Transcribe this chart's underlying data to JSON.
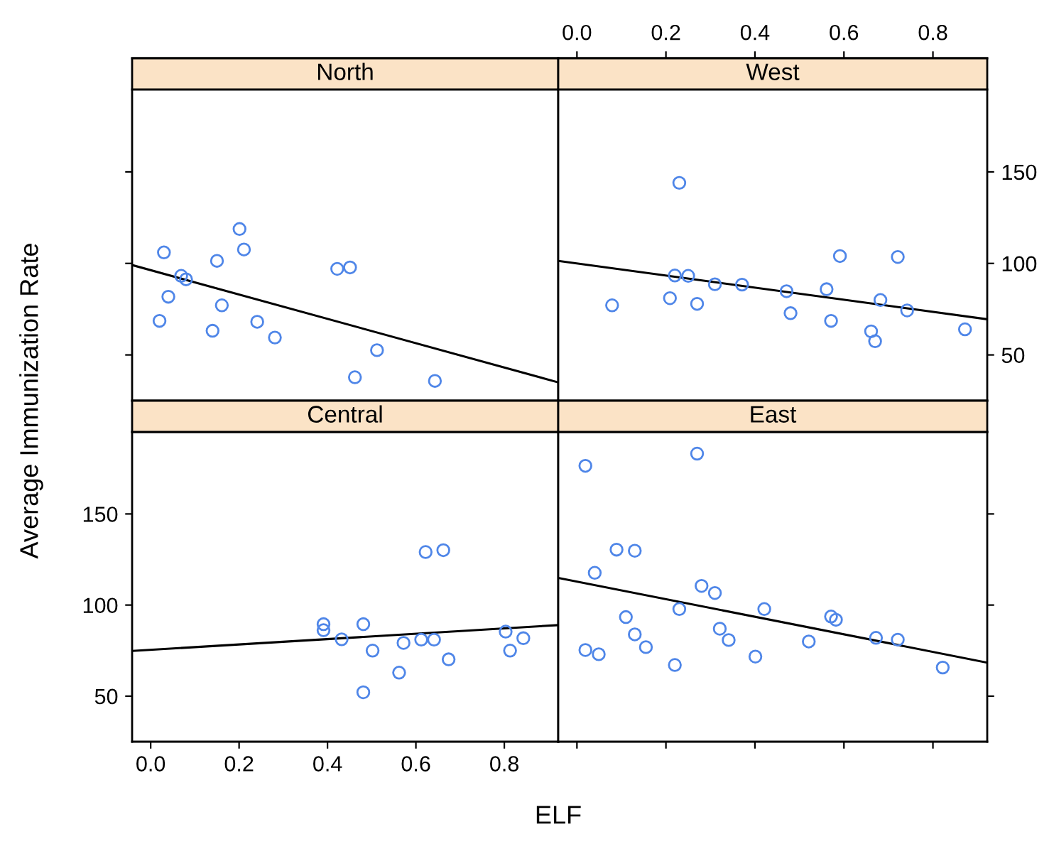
{
  "chart_data": [
    {
      "type": "scatter",
      "title": "North",
      "xlim": [
        -0.042,
        0.922
      ],
      "ylim": [
        25,
        195
      ],
      "yticks": [
        50,
        100,
        150
      ],
      "tick_labels": false,
      "grid": false,
      "legend": false,
      "series": [
        {
          "type": "scatter",
          "marker": "circle",
          "color": "#4f86e8",
          "x": [
            0.03,
            0.02,
            0.04,
            0.069,
            0.08,
            0.15,
            0.14,
            0.161,
            0.201,
            0.211,
            0.241,
            0.281,
            0.422,
            0.451,
            0.462,
            0.512,
            0.643
          ],
          "values": [
            106,
            68.6,
            81.8,
            93.2,
            91.3,
            101.4,
            63.2,
            77.1,
            118.8,
            107.6,
            68.1,
            59.5,
            97.0,
            97.8,
            37.8,
            52.6,
            35.8
          ]
        },
        {
          "type": "line",
          "marker": "none",
          "color": "#000000",
          "x": [
            -0.042,
            0.922
          ],
          "values": [
            99.1,
            35.0
          ]
        }
      ]
    },
    {
      "type": "scatter",
      "title": "West",
      "xlim": [
        -0.042,
        0.922
      ],
      "ylim": [
        25,
        195
      ],
      "xticks": [
        {
          "value": 0,
          "label": "0.0"
        },
        0.2,
        0.4,
        0.6,
        0.8
      ],
      "yticks": [
        50,
        100,
        150
      ],
      "grid": false,
      "legend": false,
      "series": [
        {
          "type": "scatter",
          "marker": "circle",
          "color": "#4f86e8",
          "x": [
            0.079,
            0.23,
            0.209,
            0.22,
            0.25,
            0.27,
            0.31,
            0.371,
            0.471,
            0.48,
            0.561,
            0.571,
            0.591,
            0.661,
            0.67,
            0.682,
            0.721,
            0.742,
            0.872
          ],
          "values": [
            77.1,
            144.0,
            81.0,
            93.4,
            93.2,
            77.9,
            88.6,
            88.4,
            84.8,
            72.8,
            85.9,
            68.6,
            104.0,
            62.9,
            57.5,
            80.0,
            103.5,
            74.3,
            64.0
          ]
        },
        {
          "type": "line",
          "marker": "none",
          "color": "#000000",
          "x": [
            -0.042,
            0.922
          ],
          "values": [
            101.4,
            69.5
          ]
        }
      ]
    },
    {
      "type": "scatter",
      "title": "Central",
      "xlabel": "ELF",
      "ylabel": "Average Immunization Rate",
      "xlim": [
        -0.042,
        0.922
      ],
      "ylim": [
        25,
        195
      ],
      "xticks": [
        {
          "value": 0,
          "label": "0.0"
        },
        0.2,
        0.4,
        0.6,
        0.8
      ],
      "yticks": [
        50,
        100,
        150
      ],
      "grid": false,
      "legend": false,
      "series": [
        {
          "type": "scatter",
          "marker": "circle",
          "color": "#4f86e8",
          "x": [
            0.391,
            0.391,
            0.432,
            0.481,
            0.481,
            0.502,
            0.562,
            0.572,
            0.612,
            0.622,
            0.641,
            0.662,
            0.674,
            0.803,
            0.813,
            0.843
          ],
          "values": [
            89.5,
            86.2,
            81.2,
            89.5,
            52.1,
            75.0,
            62.9,
            79.2,
            81.0,
            129.1,
            81.0,
            130.1,
            70.2,
            85.4,
            75.0,
            81.8
          ]
        },
        {
          "type": "line",
          "marker": "none",
          "color": "#000000",
          "x": [
            -0.042,
            0.922
          ],
          "values": [
            74.8,
            89.0
          ]
        }
      ]
    },
    {
      "type": "scatter",
      "title": "East",
      "xlim": [
        -0.042,
        0.922
      ],
      "ylim": [
        25,
        195
      ],
      "xticks": [
        0,
        0.2,
        0.4,
        0.6,
        0.8
      ],
      "yticks": [
        50,
        100,
        150
      ],
      "tick_labels": false,
      "grid": false,
      "legend": false,
      "series": [
        {
          "type": "scatter",
          "marker": "circle",
          "color": "#4f86e8",
          "x": [
            0.019,
            0.019,
            0.049,
            0.04,
            0.089,
            0.13,
            0.11,
            0.13,
            0.155,
            0.22,
            0.23,
            0.27,
            0.28,
            0.31,
            0.321,
            0.341,
            0.401,
            0.421,
            0.521,
            0.571,
            0.582,
            0.672,
            0.721,
            0.822
          ],
          "values": [
            176.4,
            75.3,
            73.0,
            117.7,
            130.4,
            129.8,
            93.4,
            83.9,
            76.9,
            67.1,
            97.8,
            183.1,
            110.5,
            106.6,
            87.0,
            80.8,
            71.7,
            97.8,
            80.0,
            93.7,
            91.9,
            82.0,
            81.0,
            65.7
          ]
        },
        {
          "type": "line",
          "marker": "none",
          "color": "#000000",
          "x": [
            -0.042,
            0.922
          ],
          "values": [
            114.9,
            68.4
          ]
        }
      ]
    }
  ]
}
